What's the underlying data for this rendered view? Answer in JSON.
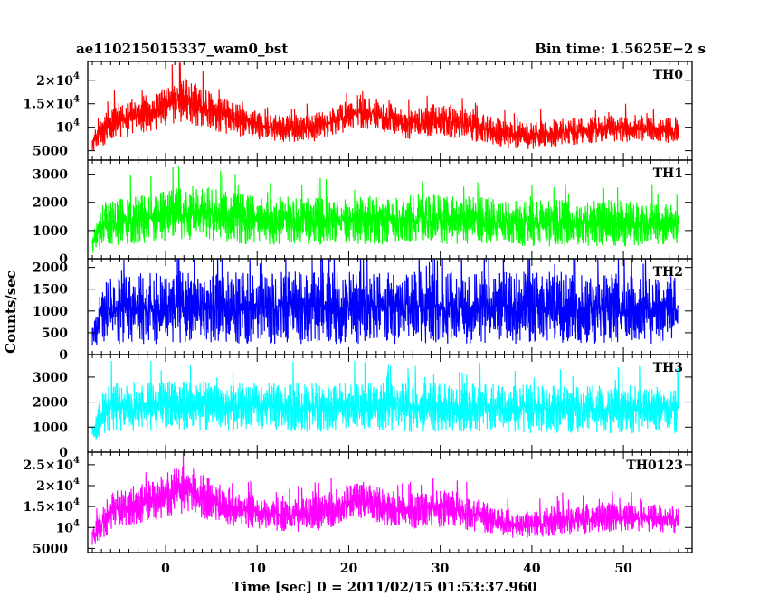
{
  "header": {
    "title": "ae110215015337_wam0_bst",
    "bin_time": "Bin time: 1.5625E−2 s"
  },
  "chart_data": {
    "type": "line",
    "xlabel": "Time [sec] 0 = 2011/02/15 01:53:37.960",
    "ylabel": "Counts/sec",
    "xlim": [
      -8.5,
      57.5
    ],
    "x_ticks": [
      0,
      10,
      20,
      30,
      40,
      50
    ],
    "x_start": -8.0,
    "x_end": 56.0,
    "bin_seconds": 0.015625,
    "panels": [
      {
        "name": "TH0",
        "color": "#ff0000",
        "ylim": [
          3000,
          24000
        ],
        "ticks": [
          {
            "value": 5000,
            "label": "5000"
          },
          {
            "value": 10000,
            "label": "10",
            "exp": "4"
          },
          {
            "value": 15000,
            "label": "1.5×10",
            "exp": "4"
          },
          {
            "value": 20000,
            "label": "2×10",
            "exp": "4"
          }
        ],
        "envelope": [
          [
            -8,
            4500,
            9000
          ],
          [
            -6,
            6500,
            15000
          ],
          [
            -3,
            8000,
            17000
          ],
          [
            0,
            9500,
            19000
          ],
          [
            2,
            10500,
            21500
          ],
          [
            4,
            9500,
            19000
          ],
          [
            7,
            8000,
            16000
          ],
          [
            10,
            7000,
            14000
          ],
          [
            13,
            6500,
            13000
          ],
          [
            16,
            6500,
            13000
          ],
          [
            18,
            7500,
            14500
          ],
          [
            21,
            9500,
            18000
          ],
          [
            24,
            8500,
            16000
          ],
          [
            26,
            7000,
            14000
          ],
          [
            29,
            7500,
            15500
          ],
          [
            31,
            7500,
            15500
          ],
          [
            34,
            6500,
            13500
          ],
          [
            36,
            5500,
            12500
          ],
          [
            38,
            5000,
            11500
          ],
          [
            40,
            5000,
            11500
          ],
          [
            42,
            5500,
            12000
          ],
          [
            45,
            6000,
            12500
          ],
          [
            48,
            6500,
            13000
          ],
          [
            51,
            6500,
            13000
          ],
          [
            54,
            6500,
            12500
          ],
          [
            56,
            6000,
            12000
          ]
        ]
      },
      {
        "name": "TH1",
        "color": "#00ff00",
        "ylim": [
          0,
          3500
        ],
        "ticks": [
          {
            "value": 0,
            "label": "0"
          },
          {
            "value": 1000,
            "label": "1000"
          },
          {
            "value": 2000,
            "label": "2000"
          },
          {
            "value": 3000,
            "label": "3000"
          }
        ],
        "envelope": [
          [
            -8,
            100,
            900
          ],
          [
            -7,
            300,
            1800
          ],
          [
            -6,
            350,
            2200
          ],
          [
            0,
            450,
            2500
          ],
          [
            3,
            450,
            2800
          ],
          [
            10,
            400,
            2300
          ],
          [
            20,
            400,
            2300
          ],
          [
            30,
            400,
            2400
          ],
          [
            40,
            350,
            2200
          ],
          [
            50,
            350,
            2200
          ],
          [
            56,
            350,
            2000
          ]
        ]
      },
      {
        "name": "TH2",
        "color": "#0000ff",
        "ylim": [
          0,
          2200
        ],
        "ticks": [
          {
            "value": 0,
            "label": "0"
          },
          {
            "value": 500,
            "label": "500"
          },
          {
            "value": 1000,
            "label": "1000"
          },
          {
            "value": 1500,
            "label": "1500"
          },
          {
            "value": 2000,
            "label": "2000"
          }
        ],
        "envelope": [
          [
            -8,
            100,
            700
          ],
          [
            -7,
            150,
            1700
          ],
          [
            -6,
            150,
            1900
          ],
          [
            0,
            150,
            2000
          ],
          [
            10,
            150,
            2000
          ],
          [
            20,
            150,
            2000
          ],
          [
            30,
            150,
            2000
          ],
          [
            40,
            150,
            2000
          ],
          [
            50,
            150,
            2000
          ],
          [
            56,
            150,
            1900
          ]
        ]
      },
      {
        "name": "TH3",
        "color": "#00ffff",
        "ylim": [
          0,
          3900
        ],
        "ticks": [
          {
            "value": 0,
            "label": "0"
          },
          {
            "value": 1000,
            "label": "1000"
          },
          {
            "value": 2000,
            "label": "2000"
          },
          {
            "value": 3000,
            "label": "3000"
          }
        ],
        "envelope": [
          [
            -8,
            300,
            1200
          ],
          [
            -7,
            600,
            2500
          ],
          [
            -6,
            700,
            2900
          ],
          [
            0,
            750,
            3000
          ],
          [
            10,
            700,
            2900
          ],
          [
            20,
            700,
            2900
          ],
          [
            30,
            700,
            2900
          ],
          [
            40,
            650,
            2800
          ],
          [
            50,
            650,
            2800
          ],
          [
            56,
            650,
            2700
          ]
        ]
      },
      {
        "name": "TH0123",
        "color": "#ff00ff",
        "ylim": [
          4000,
          28000
        ],
        "ticks": [
          {
            "value": 5000,
            "label": "5000"
          },
          {
            "value": 10000,
            "label": "10",
            "exp": "4"
          },
          {
            "value": 15000,
            "label": "1.5×10",
            "exp": "4"
          },
          {
            "value": 20000,
            "label": "2×10",
            "exp": "4"
          },
          {
            "value": 25000,
            "label": "2.5×10",
            "exp": "4"
          }
        ],
        "envelope": [
          [
            -8,
            5000,
            11000
          ],
          [
            -6,
            8500,
            19000
          ],
          [
            -3,
            10000,
            21000
          ],
          [
            0,
            11500,
            23500
          ],
          [
            2,
            12500,
            26000
          ],
          [
            4,
            11500,
            23500
          ],
          [
            7,
            10000,
            20000
          ],
          [
            10,
            9000,
            18500
          ],
          [
            13,
            8500,
            17500
          ],
          [
            16,
            8500,
            17500
          ],
          [
            18,
            9500,
            19000
          ],
          [
            21,
            11000,
            22000
          ],
          [
            24,
            10000,
            20000
          ],
          [
            26,
            9000,
            18500
          ],
          [
            29,
            9500,
            19500
          ],
          [
            31,
            9500,
            19500
          ],
          [
            34,
            8500,
            17500
          ],
          [
            36,
            7500,
            16000
          ],
          [
            38,
            7000,
            15000
          ],
          [
            40,
            7000,
            15000
          ],
          [
            42,
            7500,
            15500
          ],
          [
            45,
            8000,
            16000
          ],
          [
            48,
            8500,
            16500
          ],
          [
            51,
            8500,
            16500
          ],
          [
            54,
            8500,
            16000
          ],
          [
            56,
            8000,
            15500
          ]
        ]
      }
    ]
  }
}
